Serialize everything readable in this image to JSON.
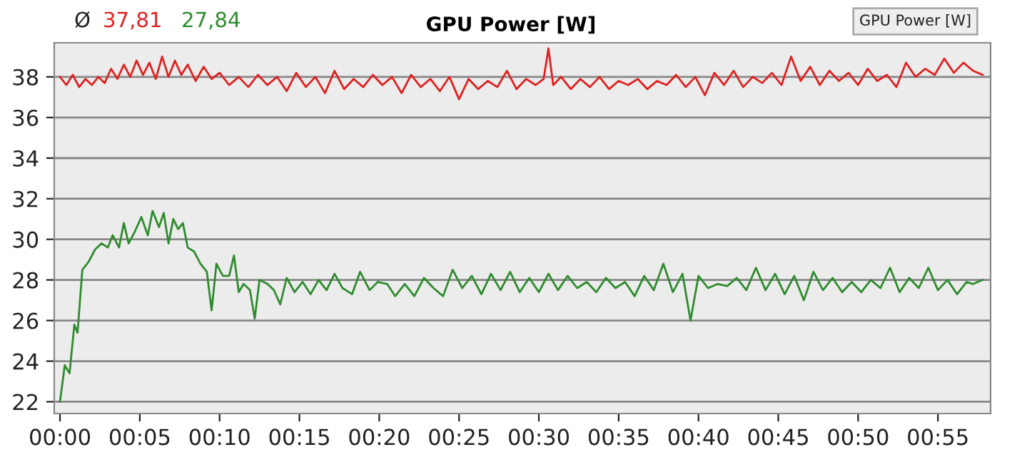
{
  "chart_data": {
    "type": "line",
    "title": "GPU Power [W]",
    "annotations": [
      "Ø",
      "37,81",
      "27,84",
      "GPU Power [W]"
    ],
    "xlim": [
      -0.36,
      58.3
    ],
    "ylim": [
      21.42,
      39.68
    ],
    "xticks": [
      {
        "value": 0,
        "label": "00:00"
      },
      {
        "value": 5,
        "label": "00:05"
      },
      {
        "value": 10,
        "label": "00:10"
      },
      {
        "value": 15,
        "label": "00:15"
      },
      {
        "value": 20,
        "label": "00:20"
      },
      {
        "value": 25,
        "label": "00:25"
      },
      {
        "value": 30,
        "label": "00:30"
      },
      {
        "value": 35,
        "label": "00:35"
      },
      {
        "value": 40,
        "label": "00:40"
      },
      {
        "value": 45,
        "label": "00:45"
      },
      {
        "value": 50,
        "label": "00:50"
      },
      {
        "value": 55,
        "label": "00:55"
      }
    ],
    "yticks": [
      22,
      24,
      26,
      28,
      30,
      32,
      34,
      36,
      38
    ],
    "grid": "y",
    "series": [
      {
        "color": "#e02020",
        "x": [
          0,
          0.4,
          0.8,
          1.2,
          1.6,
          2.0,
          2.4,
          2.8,
          3.2,
          3.6,
          4.0,
          4.4,
          4.8,
          5.2,
          5.6,
          6.0,
          6.4,
          6.8,
          7.2,
          7.6,
          8.0,
          8.5,
          9.0,
          9.5,
          10.0,
          10.6,
          11.2,
          11.8,
          12.4,
          13.0,
          13.6,
          14.2,
          14.8,
          15.4,
          16.0,
          16.6,
          17.2,
          17.8,
          18.4,
          19.0,
          19.6,
          20.2,
          20.8,
          21.4,
          22.0,
          22.6,
          23.2,
          23.8,
          24.4,
          25.0,
          25.6,
          26.2,
          26.8,
          27.4,
          28.0,
          28.6,
          29.2,
          29.8,
          30.3,
          30.6,
          30.9,
          31.4,
          32.0,
          32.6,
          33.2,
          33.8,
          34.4,
          35.0,
          35.6,
          36.2,
          36.8,
          37.4,
          38.0,
          38.6,
          39.2,
          39.8,
          40.4,
          41.0,
          41.6,
          42.2,
          42.8,
          43.4,
          44.0,
          44.6,
          45.2,
          45.8,
          46.4,
          47.0,
          47.6,
          48.2,
          48.8,
          49.4,
          50.0,
          50.6,
          51.2,
          51.8,
          52.4,
          53.0,
          53.6,
          54.2,
          54.8,
          55.4,
          56.0,
          56.6,
          57.2,
          57.8
        ],
        "values": [
          38.0,
          37.6,
          38.1,
          37.5,
          37.9,
          37.6,
          38.0,
          37.7,
          38.4,
          37.9,
          38.6,
          38.0,
          38.8,
          38.1,
          38.7,
          37.9,
          39.0,
          38.0,
          38.8,
          38.1,
          38.6,
          37.8,
          38.5,
          37.9,
          38.2,
          37.6,
          38.0,
          37.5,
          38.1,
          37.6,
          38.0,
          37.3,
          38.2,
          37.5,
          38.0,
          37.2,
          38.3,
          37.4,
          37.9,
          37.5,
          38.1,
          37.6,
          38.0,
          37.2,
          38.1,
          37.5,
          37.9,
          37.3,
          38.0,
          36.9,
          37.9,
          37.4,
          37.8,
          37.5,
          38.3,
          37.4,
          37.9,
          37.6,
          37.9,
          39.4,
          37.6,
          38.0,
          37.4,
          37.9,
          37.5,
          38.0,
          37.4,
          37.8,
          37.6,
          37.9,
          37.4,
          37.8,
          37.6,
          38.1,
          37.5,
          38.0,
          37.1,
          38.2,
          37.6,
          38.3,
          37.5,
          38.0,
          37.7,
          38.2,
          37.6,
          39.0,
          37.8,
          38.5,
          37.6,
          38.3,
          37.8,
          38.2,
          37.6,
          38.4,
          37.8,
          38.1,
          37.5,
          38.7,
          38.0,
          38.4,
          38.1,
          38.9,
          38.2,
          38.7,
          38.3,
          38.1
        ]
      },
      {
        "color": "#2e8b2e",
        "x": [
          0,
          0.3,
          0.6,
          0.9,
          1.1,
          1.4,
          1.8,
          2.2,
          2.6,
          3.0,
          3.3,
          3.7,
          4.0,
          4.3,
          4.7,
          5.1,
          5.5,
          5.8,
          6.2,
          6.5,
          6.8,
          7.1,
          7.4,
          7.7,
          8.0,
          8.4,
          8.8,
          9.2,
          9.5,
          9.8,
          10.2,
          10.6,
          10.9,
          11.2,
          11.5,
          11.9,
          12.2,
          12.5,
          13.0,
          13.4,
          13.8,
          14.2,
          14.7,
          15.2,
          15.7,
          16.2,
          16.7,
          17.2,
          17.7,
          18.3,
          18.8,
          19.4,
          19.9,
          20.5,
          21.0,
          21.6,
          22.2,
          22.8,
          23.4,
          24.0,
          24.6,
          25.2,
          25.8,
          26.4,
          27.0,
          27.6,
          28.2,
          28.8,
          29.4,
          30.0,
          30.6,
          31.2,
          31.8,
          32.4,
          33.0,
          33.6,
          34.2,
          34.8,
          35.4,
          36.0,
          36.6,
          37.2,
          37.8,
          38.4,
          39.0,
          39.5,
          40.0,
          40.6,
          41.2,
          41.8,
          42.4,
          43.0,
          43.6,
          44.2,
          44.8,
          45.4,
          46.0,
          46.6,
          47.2,
          47.8,
          48.4,
          49.0,
          49.6,
          50.2,
          50.8,
          51.4,
          52.0,
          52.6,
          53.2,
          53.8,
          54.4,
          55.0,
          55.6,
          56.2,
          56.8,
          57.2,
          57.8
        ],
        "values": [
          22.0,
          23.8,
          23.4,
          25.8,
          25.4,
          28.5,
          28.9,
          29.5,
          29.8,
          29.6,
          30.2,
          29.6,
          30.8,
          29.8,
          30.4,
          31.1,
          30.2,
          31.4,
          30.6,
          31.3,
          29.8,
          31.0,
          30.5,
          30.8,
          29.6,
          29.4,
          28.8,
          28.4,
          26.5,
          28.8,
          28.2,
          28.2,
          29.2,
          27.4,
          27.8,
          27.5,
          26.1,
          28.0,
          27.8,
          27.5,
          26.8,
          28.1,
          27.4,
          27.9,
          27.3,
          28.0,
          27.5,
          28.3,
          27.6,
          27.3,
          28.4,
          27.5,
          27.9,
          27.8,
          27.2,
          27.8,
          27.2,
          28.1,
          27.6,
          27.2,
          28.5,
          27.6,
          28.2,
          27.3,
          28.3,
          27.5,
          28.4,
          27.4,
          28.1,
          27.4,
          28.3,
          27.5,
          28.2,
          27.6,
          27.9,
          27.4,
          28.1,
          27.6,
          27.9,
          27.2,
          28.2,
          27.5,
          28.8,
          27.4,
          28.3,
          26.0,
          28.2,
          27.6,
          27.8,
          27.7,
          28.1,
          27.5,
          28.6,
          27.5,
          28.3,
          27.3,
          28.2,
          27.0,
          28.4,
          27.5,
          28.1,
          27.4,
          27.9,
          27.4,
          28.0,
          27.6,
          28.6,
          27.4,
          28.1,
          27.6,
          28.6,
          27.5,
          28.0,
          27.3,
          27.9,
          27.8,
          28.0
        ]
      }
    ]
  }
}
